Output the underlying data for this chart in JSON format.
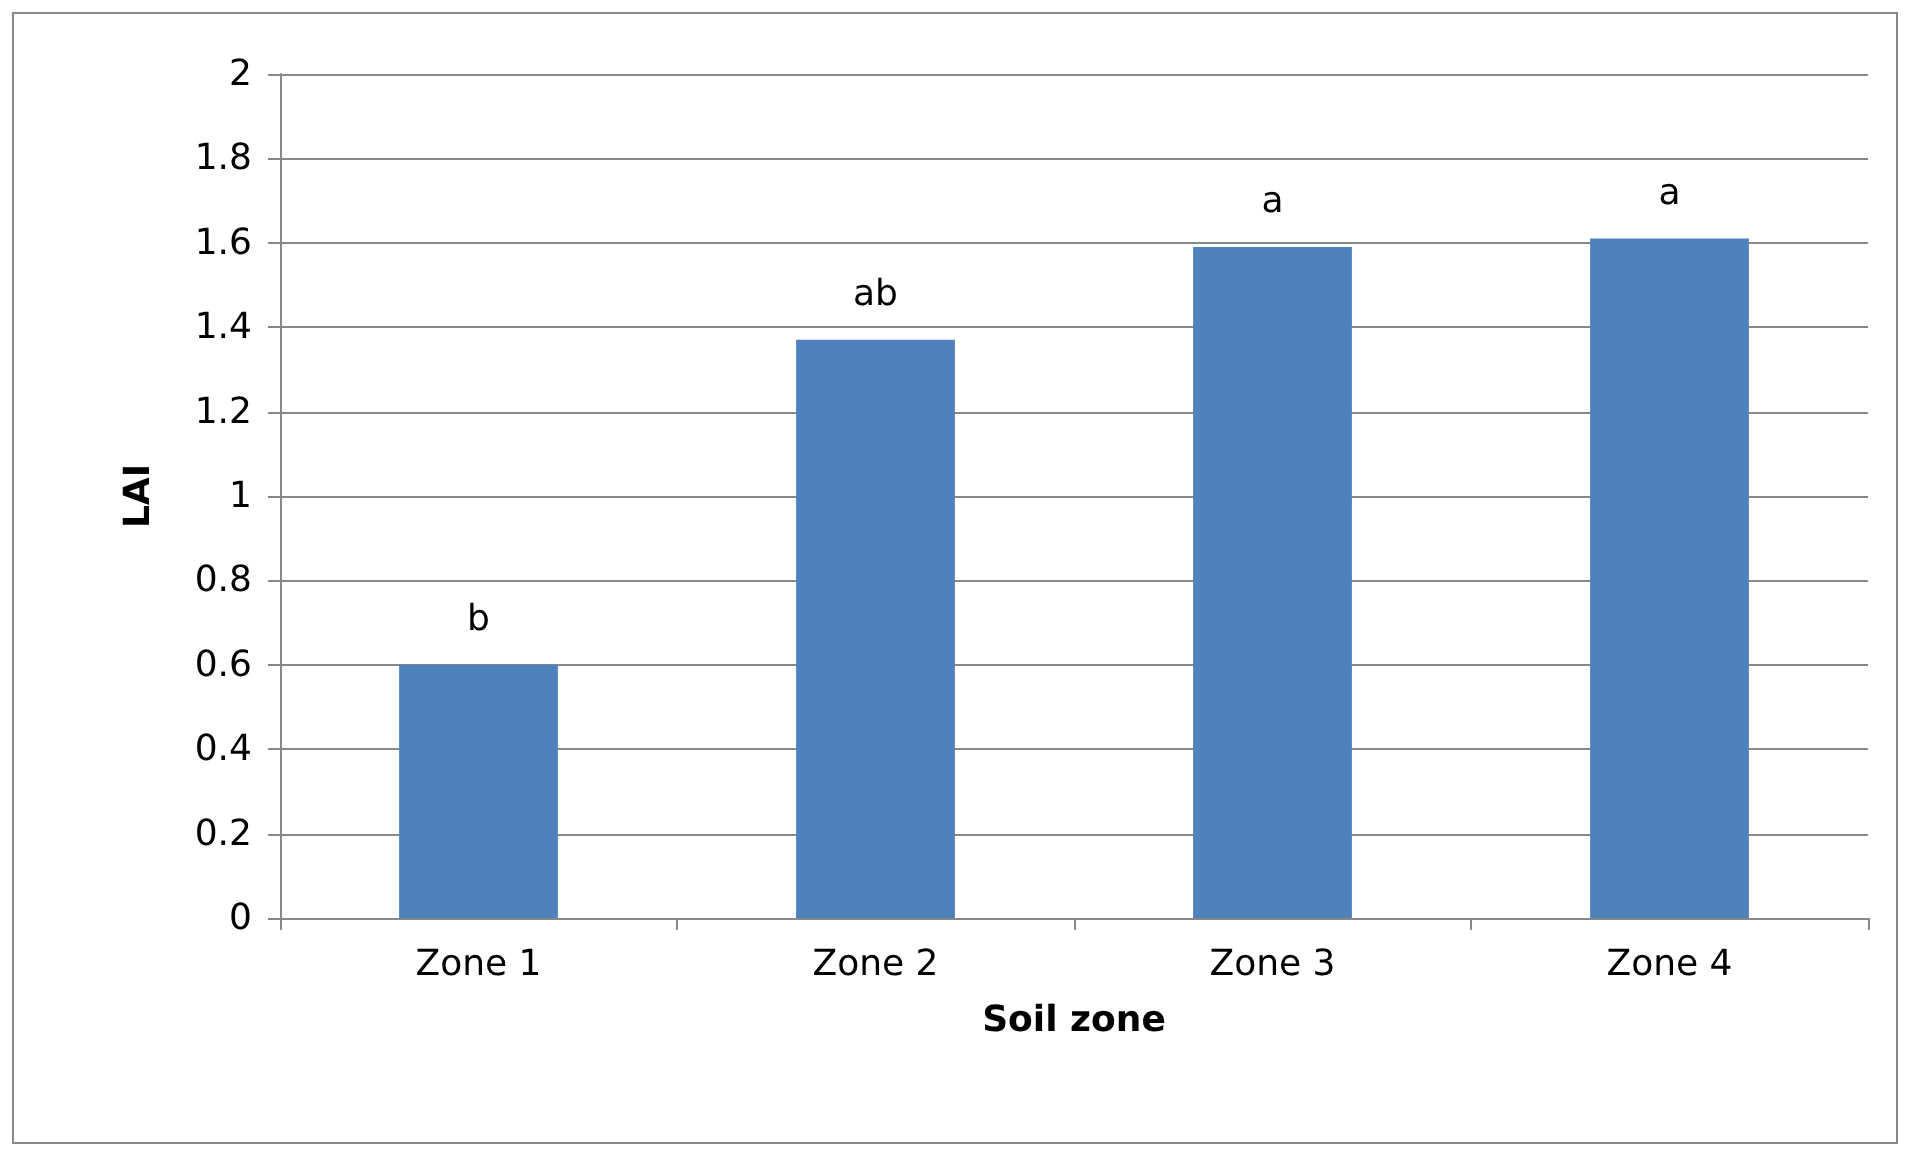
{
  "chart_data": {
    "type": "bar",
    "xlabel": "Soil zone",
    "ylabel": "LAI",
    "categories": [
      "Zone 1",
      "Zone 2",
      "Zone 3",
      "Zone 4"
    ],
    "values": [
      0.6,
      1.37,
      1.59,
      1.61
    ],
    "color": "#4f81bd",
    "ylim": [
      0,
      2
    ],
    "yticks": [
      0,
      0.2,
      0.4,
      0.6,
      0.8,
      1,
      1.2,
      1.4,
      1.6,
      1.8,
      2
    ],
    "grid": "y",
    "annotations": [
      {
        "text": "b",
        "x": "Zone 1",
        "y": 0.6
      },
      {
        "text": "ab",
        "x": "Zone 2",
        "y": 1.37
      },
      {
        "text": "a",
        "x": "Zone 3",
        "y": 1.59
      },
      {
        "text": "a",
        "x": "Zone 4",
        "y": 1.61
      }
    ]
  }
}
